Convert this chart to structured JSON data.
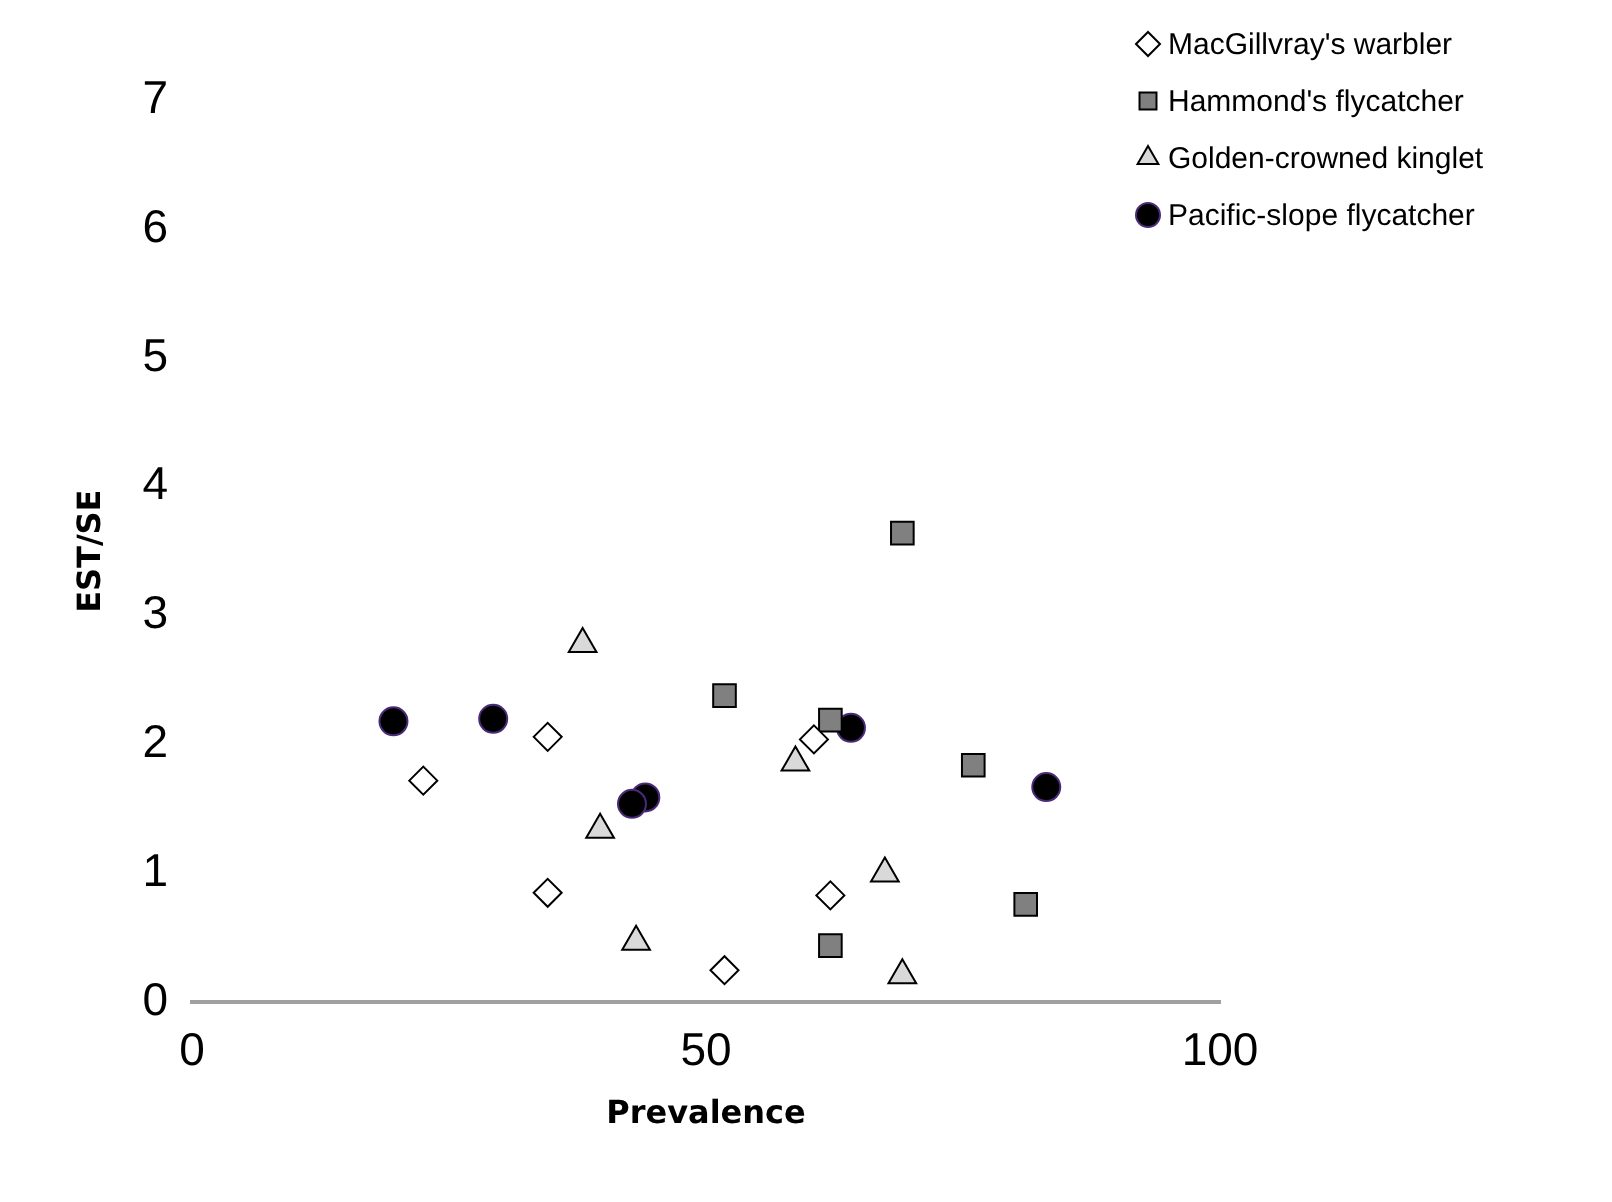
{
  "chart_data": {
    "type": "scatter",
    "xlabel": "Prevalence",
    "ylabel": "EST/SE",
    "xlim": [
      0,
      100
    ],
    "xticks": [
      0,
      50,
      100
    ],
    "ylim": [
      0,
      7
    ],
    "yticks": [
      0,
      1,
      2,
      3,
      4,
      5,
      6,
      7
    ],
    "grid": false,
    "legend": "top right",
    "series": [
      {
        "name": "MacGillvray's warbler",
        "color": "#ffffff",
        "marker": "diamond",
        "x": [
          22.5,
          34.6,
          34.6,
          51.8,
          60.5,
          62.1
        ],
        "values": [
          1.72,
          2.06,
          0.85,
          0.25,
          2.04,
          0.83
        ]
      },
      {
        "name": "Hammond's flycatcher",
        "color": "#808080",
        "marker": "square",
        "x": [
          51.8,
          69.1,
          62.1,
          76.0,
          81.1,
          62.1
        ],
        "values": [
          2.38,
          3.64,
          2.19,
          1.84,
          0.76,
          0.44
        ]
      },
      {
        "name": "Golden-crowned kinglet",
        "color": "#d9d9d9",
        "marker": "triangle",
        "x": [
          38.0,
          39.7,
          43.2,
          58.7,
          67.4,
          69.1
        ],
        "values": [
          2.78,
          1.34,
          0.47,
          1.86,
          1.0,
          0.21
        ]
      },
      {
        "name": "Pacific-slope flycatcher",
        "color": "#000000",
        "marker": "circle",
        "x": [
          19.6,
          29.3,
          44.1,
          42.8,
          64.1,
          83.1
        ],
        "values": [
          2.18,
          2.2,
          1.59,
          1.54,
          2.13,
          1.67
        ]
      }
    ]
  }
}
